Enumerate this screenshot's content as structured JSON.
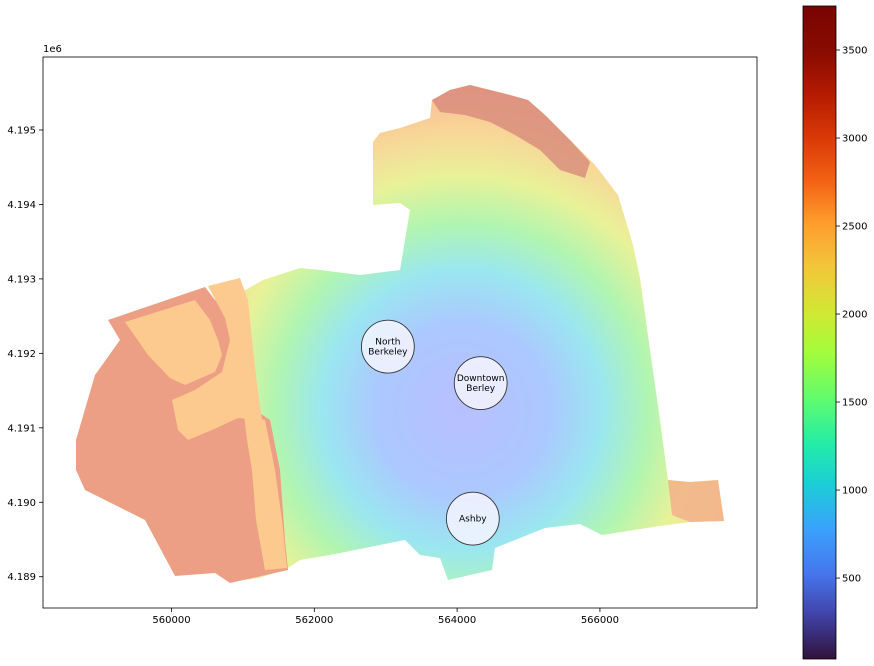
{
  "map": {
    "x_scale_text": "1e6",
    "x_range": [
      558200,
      568200
    ],
    "y_range": [
      4188580,
      4195980
    ],
    "x_ticks": [
      {
        "value": 560000,
        "label": "560000"
      },
      {
        "value": 562000,
        "label": "562000"
      },
      {
        "value": 564000,
        "label": "564000"
      },
      {
        "value": 566000,
        "label": "566000"
      }
    ],
    "y_ticks": [
      {
        "value": 4189000,
        "label": "4.189"
      },
      {
        "value": 4190000,
        "label": "4.190"
      },
      {
        "value": 4191000,
        "label": "4.191"
      },
      {
        "value": 4192000,
        "label": "4.192"
      },
      {
        "value": 4193000,
        "label": "4.193"
      },
      {
        "value": 4194000,
        "label": "4.194"
      },
      {
        "value": 4195000,
        "label": "4.195"
      }
    ],
    "stations": [
      {
        "id": "north-berkeley",
        "lines": [
          "North",
          "Berkeley"
        ],
        "x": 563030,
        "y": 4192090,
        "r": 500
      },
      {
        "id": "downtown-berkeley",
        "lines": [
          "Downtown",
          "Berley"
        ],
        "x": 564330,
        "y": 4191600,
        "r": 500
      },
      {
        "id": "ashby",
        "lines": [
          "Ashby"
        ],
        "x": 564220,
        "y": 4189780,
        "r": 500
      }
    ]
  },
  "colorbar": {
    "colormap": "turbo",
    "vmin": 40,
    "vmax": 3750,
    "ticks": [
      {
        "value": 500,
        "label": "500"
      },
      {
        "value": 1000,
        "label": "1000"
      },
      {
        "value": 1500,
        "label": "1500"
      },
      {
        "value": 2000,
        "label": "2000"
      },
      {
        "value": 2500,
        "label": "2500"
      },
      {
        "value": 3000,
        "label": "3000"
      },
      {
        "value": 3500,
        "label": "3500"
      }
    ]
  }
}
